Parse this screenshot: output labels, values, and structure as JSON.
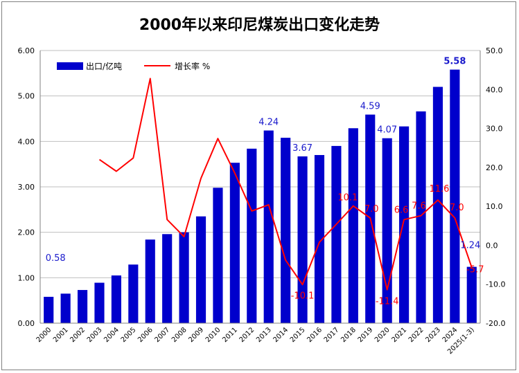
{
  "chart_data": {
    "type": "bar+line",
    "title": "2000年以来印尼煤炭出口变化走势",
    "categories": [
      "2000",
      "2001",
      "2002",
      "2003",
      "2004",
      "2005",
      "2006",
      "2007",
      "2008",
      "2009",
      "2010",
      "2011",
      "2012",
      "2013",
      "2014",
      "2015",
      "2016",
      "2017",
      "2018",
      "2019",
      "2020",
      "2021",
      "2022",
      "2023",
      "2024",
      "2025(1-3)"
    ],
    "series": [
      {
        "name": "出口/亿吨",
        "type": "bar",
        "axis": "left",
        "color": "#0000CC",
        "values": [
          0.58,
          0.65,
          0.73,
          0.89,
          1.05,
          1.29,
          1.84,
          1.96,
          2.0,
          2.35,
          2.98,
          3.53,
          3.84,
          4.24,
          4.08,
          3.67,
          3.7,
          3.9,
          4.29,
          4.59,
          4.07,
          4.33,
          4.66,
          5.2,
          5.58,
          1.24
        ]
      },
      {
        "name": "增长率 %",
        "type": "line",
        "axis": "right",
        "color": "#FF0000",
        "values": [
          null,
          null,
          null,
          22.0,
          19.0,
          22.4,
          42.8,
          6.6,
          2.2,
          17.2,
          27.4,
          18.5,
          8.8,
          10.4,
          -3.8,
          -10.1,
          0.8,
          5.4,
          10.1,
          7.0,
          -11.4,
          6.6,
          7.6,
          11.6,
          7.0,
          -5.7
        ]
      }
    ],
    "bar_labels": [
      {
        "index": 0,
        "text": "0.58"
      },
      {
        "index": 13,
        "text": "4.24"
      },
      {
        "index": 15,
        "text": "3.67"
      },
      {
        "index": 19,
        "text": "4.59"
      },
      {
        "index": 20,
        "text": "4.07"
      },
      {
        "index": 24,
        "text": "5.58"
      },
      {
        "index": 25,
        "text": "1.24"
      }
    ],
    "line_labels": [
      {
        "index": 15,
        "text": "-10.1"
      },
      {
        "index": 18,
        "text": "10.1"
      },
      {
        "index": 19,
        "text": "7.0"
      },
      {
        "index": 20,
        "text": "-11.4"
      },
      {
        "index": 21,
        "text": "6.6"
      },
      {
        "index": 22,
        "text": "7.6"
      },
      {
        "index": 23,
        "text": "11.6"
      },
      {
        "index": 24,
        "text": "7.0"
      },
      {
        "index": 25,
        "text": "-5.7"
      }
    ],
    "y_left": {
      "min": 0,
      "max": 6,
      "step": 1,
      "ticks": [
        "0.00",
        "1.00",
        "2.00",
        "3.00",
        "4.00",
        "5.00",
        "6.00"
      ]
    },
    "y_right": {
      "min": -20,
      "max": 50,
      "step": 10,
      "ticks": [
        "-20.0",
        "-10.0",
        "0.0",
        "10.0",
        "20.0",
        "30.0",
        "40.0",
        "50.0"
      ]
    },
    "grid": true,
    "legend_position": "top-left"
  }
}
